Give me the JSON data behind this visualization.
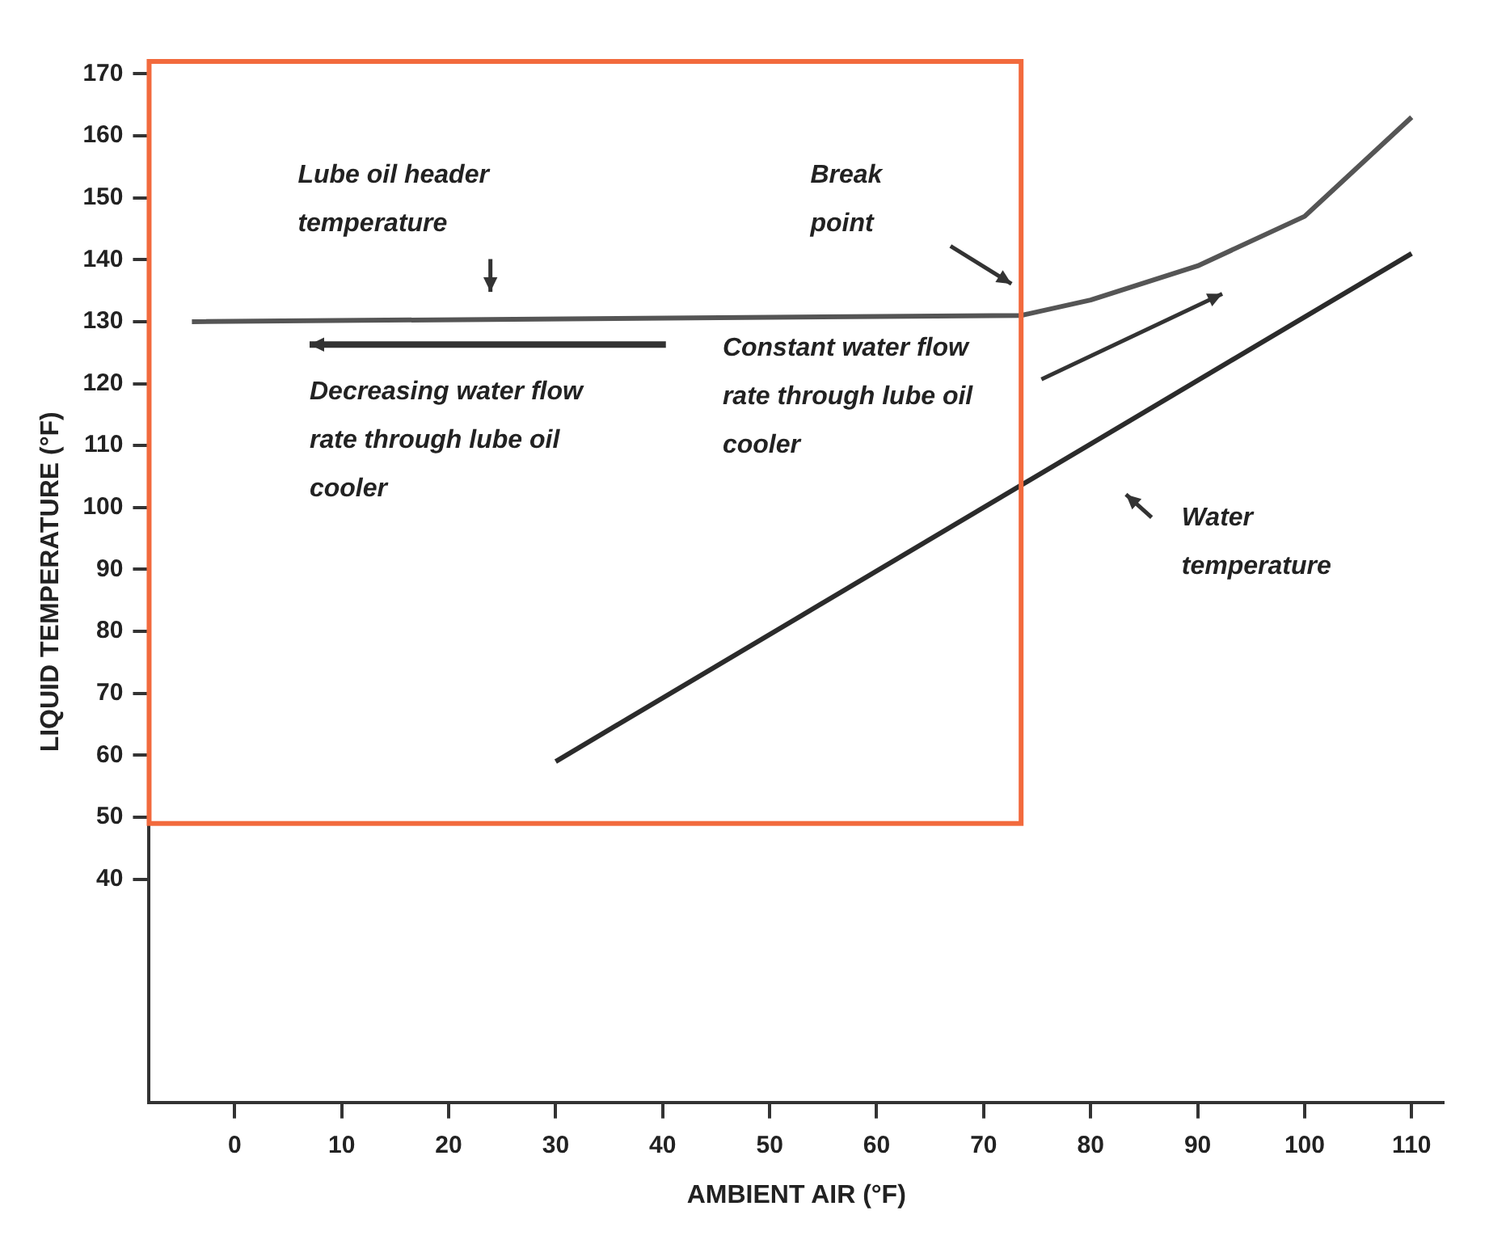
{
  "chart_data": {
    "type": "line",
    "xlabel": "AMBIENT AIR (°F)",
    "ylabel": "LIQUID TEMPERATURE (°F)",
    "series": [
      {
        "color": "#555555",
        "x": [
          -4,
          73.5,
          80,
          90,
          100,
          110
        ],
        "values": [
          130,
          131,
          133.5,
          139,
          147,
          163
        ]
      },
      {
        "color": "#2b2b2b",
        "x": [
          30,
          110
        ],
        "values": [
          59,
          141
        ]
      }
    ],
    "xlim": [
      -8,
      113
    ],
    "xticks": [
      0,
      10,
      20,
      30,
      40,
      50,
      60,
      70,
      80,
      90,
      100,
      110
    ],
    "ylim": [
      4,
      172
    ],
    "yticks": [
      40,
      50,
      60,
      70,
      80,
      90,
      100,
      110,
      120,
      130,
      140,
      150,
      160,
      170
    ],
    "grid": false,
    "legend": false,
    "marker": "none",
    "line_style": "solid",
    "annotations": [
      "Lube oil header temperature",
      "Break point",
      "Decreasing water flow rate through lube oil cooler",
      "Constant water flow rate through lube oil cooler",
      "Water temperature"
    ]
  }
}
